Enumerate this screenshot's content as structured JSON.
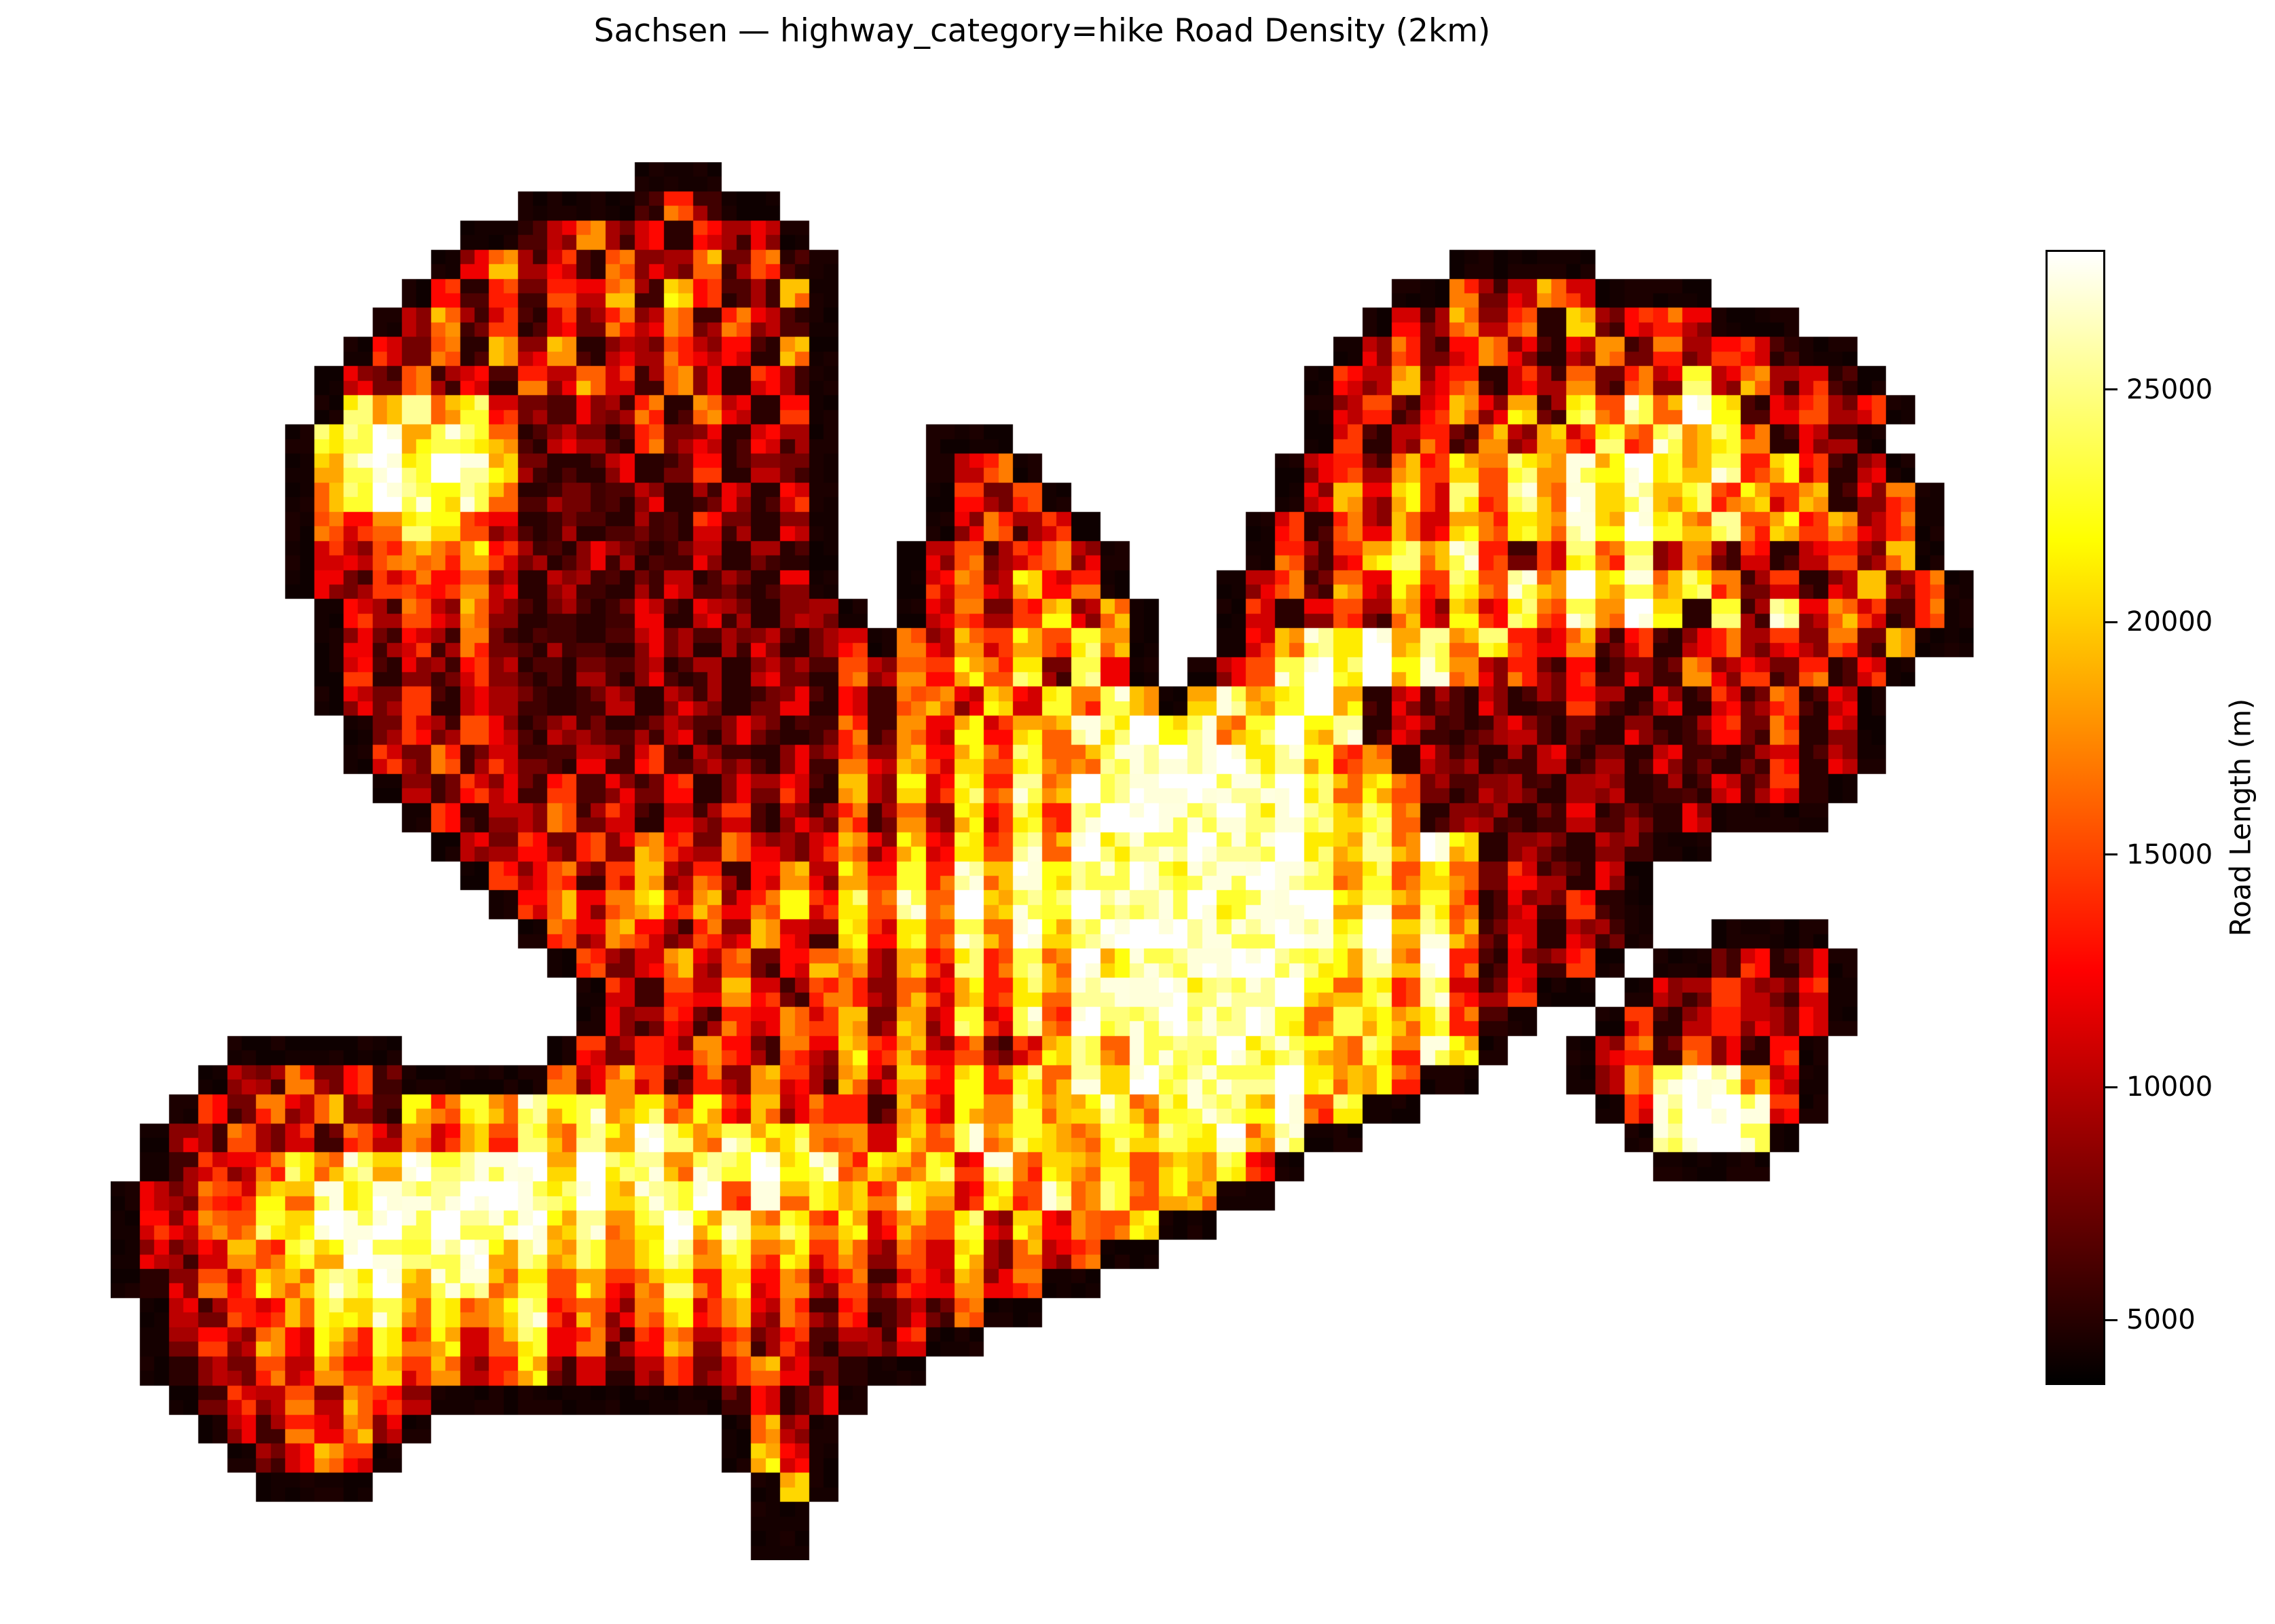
{
  "title": "Sachsen — highway_category=hike Road Density (2km)",
  "colorbar": {
    "label": "Road Length (m)",
    "ticks": [
      5000,
      10000,
      15000,
      20000,
      25000
    ],
    "vmin": 3600,
    "vmax": 28000,
    "colormap": "hot"
  },
  "chart_data": {
    "type": "heatmap",
    "title": "Sachsen — highway_category=hike Road Density (2km)",
    "region": "Sachsen",
    "filter": "highway_category=hike",
    "cell_size_km": 2,
    "value_label": "Road Length (m)",
    "value_range_m": [
      3600,
      28000
    ],
    "colorbar_tick_values_m": [
      5000,
      10000,
      15000,
      20000,
      25000
    ],
    "legend_note": "grid digits 0-9 map to approx road length in metres per 2km cell; '.' = outside region mask",
    "level_values_m": [
      5100,
      7600,
      10200,
      12700,
      15300,
      17800,
      20400,
      22900,
      25400,
      28000
    ],
    "grid_cols": 64,
    "grid_rows": 48,
    "grid": [
      [
        [
          18,
          "010"
        ]
      ],
      [
        [
          14,
          "031204102"
        ]
      ],
      [
        [
          12,
          "140251303121"
        ]
      ],
      [
        [
          11,
          "02513042151402"
        ],
        [
          46,
          "13031"
        ]
      ],
      [
        [
          10,
          "130414251630151"
        ],
        [
          44,
          "02412530411"
        ]
      ],
      [
        [
          9,
          "0251303142514203"
        ],
        [
          43,
          "131524061342512"
        ]
      ],
      [
        [
          8,
          "13140525021423051"
        ],
        [
          42,
          "024135202514133041"
        ]
      ],
      [
        [
          7,
          "021413042531520314"
        ],
        [
          41,
          "13252403151427251302"
        ]
      ],
      [
        [
          7,
          "675857310214052031"
        ],
        [
          41,
          "024135261748596024131"
        ]
      ],
      [
        [
          6,
          "3789687502104120310"
        ],
        [
          28,
          "131"
        ],
        [
          41,
          "13024152637485740213"
        ]
      ],
      [
        [
          6,
          "2689798610020130210"
        ],
        [
          28,
          "0242"
        ],
        [
          40,
          "0241536475869758463021"
        ]
      ],
      [
        [
          6,
          "1579868501102012031"
        ],
        [
          28,
          "13140"
        ],
        [
          40,
          "02526374859685746350241"
        ]
      ],
      [
        [
          6,
          "2435764201001031021"
        ],
        [
          28,
          "024135"
        ],
        [
          39,
          "130425364758697584635241"
        ]
      ],
      [
        [
          6,
          "1324546310210120103"
        ],
        [
          27,
          "02413525"
        ],
        [
          39,
          "241367584137482513024153"
        ]
      ],
      [
        [
          6,
          "0213435202101201021"
        ],
        [
          27,
          "13526341"
        ],
        [
          38,
          "02415263748596857413025141"
        ]
      ],
      [
        [
          7,
          "0314252010120210213"
        ],
        [
          27,
          "024136251"
        ],
        [
          38,
          "13024152637485960718253041"
        ]
      ],
      [
        [
          7,
          "02131410100210120131425364758"
        ],
        [
          38,
          "13587968574251302413241520"
        ]
      ],
      [
        [
          7,
          "13021320010201021042536471829"
        ],
        [
          37,
          "0248979685241302152314031"
        ]
      ],
      [
        [
          7,
          "021302110120210120314526374859685796021020131020314025"
        ]
      ],
      [
        [
          8,
          "21314202101202101415263658796857968021012010201314025"
        ]
      ],
      [
        [
          8,
          "13141310213021021425364755889897864502101201021013024"
        ]
      ],
      [
        [
          9,
          "021321302130213052637485989998897564102101201021302"
        ]
      ],
      [
        [
          10,
          "1302241302130214152637489988979867502101201021130"
        ]
      ],
      [
        [
          11,
          "02131425314213526374859788988976859602102130"
        ]
      ],
      [
        [
          12,
          "13241352413526374859688978898857465131021"
        ]
      ],
      [
        [
          13,
          "0352463524637485968798889789968574021302"
        ]
      ],
      [
        [
          14,
          "142531425316374859689998889879685130213"
        ],
        [
          55,
          "0210"
        ]
      ],
      [
        [
          15,
          "2413524135526374859688999876859402131"
        ],
        [
          53,
          "0213021"
        ]
      ],
      [
        [
          16,
          "13142531442536475889978896574831302"
        ],
        [
          52,
          "02132130"
        ]
      ],
      [
        [
          16,
          "021314253516273849789889758657402"
        ],
        [
          51,
          "130242130"
        ]
      ],
      [
        [
          4,
          "031420"
        ],
        [
          15,
          "131425314263524136858879786574863"
        ],
        [
          50,
          "024142031"
        ]
      ],
      [
        [
          3,
          "02141312413542531425315263647586978889756483"
        ],
        [
          50,
          "025898520"
        ]
      ],
      [
        [
          2,
          "0314252064758685746352441536475685788694753"
        ],
        [
          51,
          "13899831"
        ]
      ],
      [
        [
          1,
          "021413142536475869758674536485765768795864"
        ],
        [
          52,
          "289982"
        ]
      ],
      [
        [
          1,
          "0132475869788969785879684657384657465736"
        ],
        [
          53,
          "1891"
        ]
      ],
      [
        [
          0,
          "0214365879889987968794857647536485746573"
        ]
      ],
      [
        [
          0,
          "13254769898988968579685746354726354635"
        ]
      ],
      [
        [
          0,
          "021354769878968574685746352436152435"
        ]
      ],
      [
        [
          0,
          "1024365879688574635746352413252413"
        ]
      ],
      [
        [
          1,
          "0214357685746835246352413021413"
        ]
      ],
      [
        [
          1,
          "01325364746357241352413021302"
        ]
      ],
      [
        [
          1,
          "002142536352461302413521020"
        ]
      ],
      [
        [
          2,
          "013242532413502130213021"
        ]
      ],
      [
        [
          3,
          "02142520"
        ],
        [
          21,
          "3524"
        ]
      ],
      [
        [
          4,
          "013531"
        ],
        [
          21,
          "4635"
        ]
      ],
      [
        [
          5,
          "0241"
        ],
        [
          22,
          "364"
        ]
      ],
      [
        [
          22,
          "46"
        ]
      ],
      [
        [
          22,
          "24"
        ]
      ]
    ]
  }
}
